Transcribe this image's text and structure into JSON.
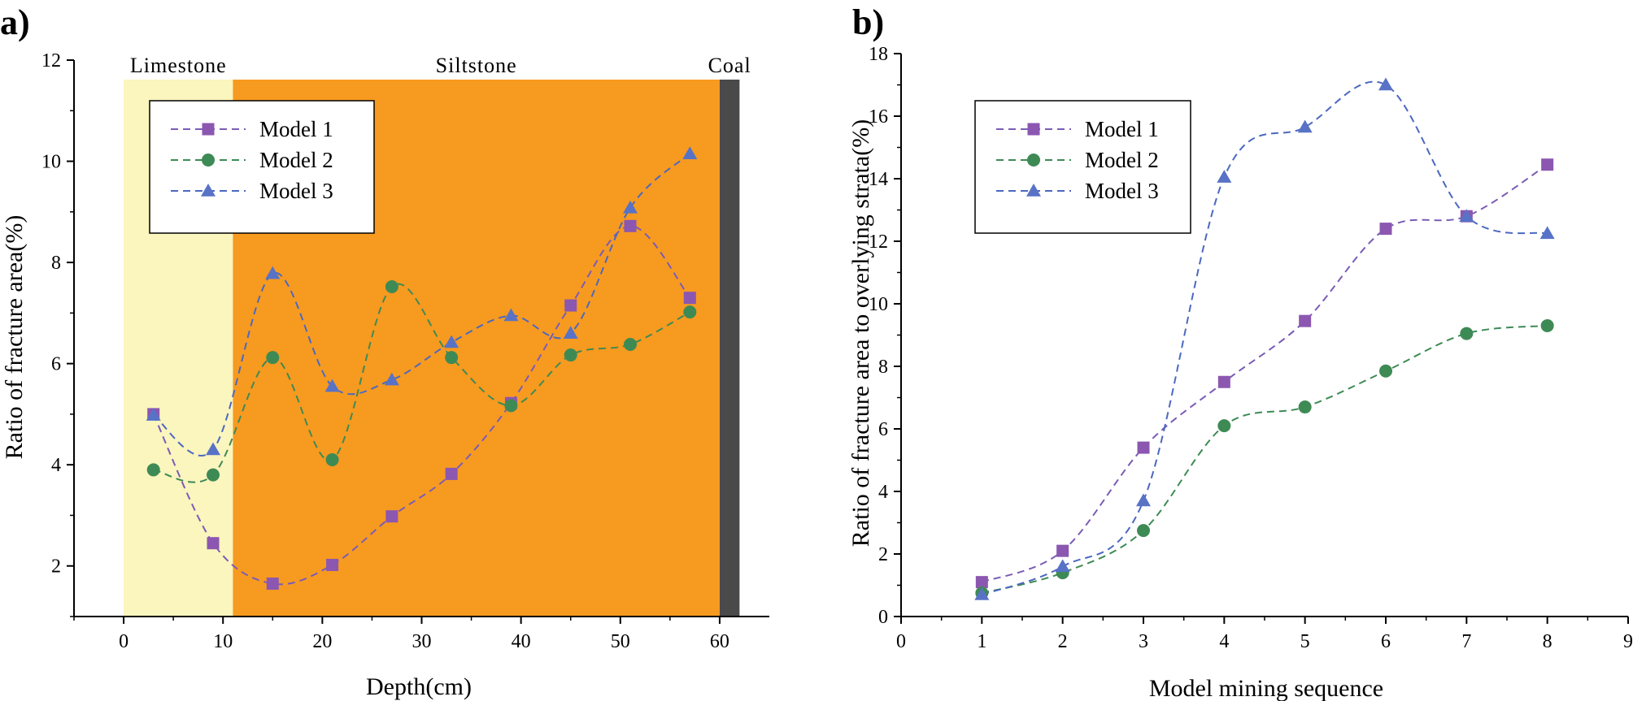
{
  "chart_data": [
    {
      "panel": "a)",
      "type": "line",
      "xlabel": "Depth(cm)",
      "ylabel": "Ratio of fracture area(%)",
      "xlim": [
        -5,
        65
      ],
      "ylim": [
        1,
        12
      ],
      "xticks": [
        0,
        10,
        20,
        30,
        40,
        50,
        60
      ],
      "yticks": [
        2,
        4,
        6,
        8,
        10,
        12
      ],
      "zones": [
        {
          "label": "Limestone",
          "from": 0,
          "to": 11,
          "color": "#FBF5BE"
        },
        {
          "label": "Siltstone",
          "from": 11,
          "to": 60,
          "color": "#F79A20"
        },
        {
          "label": "Coal",
          "from": 60,
          "to": 62,
          "color": "#4A4A4A"
        }
      ],
      "legend_position": "upper-left",
      "series": [
        {
          "name": "Model 1",
          "marker": "square",
          "color": "#8B57B0",
          "lineColor": "#7A5CB5",
          "x": [
            3,
            9,
            15,
            21,
            27,
            33,
            39,
            45,
            51,
            57
          ],
          "y": [
            5.0,
            2.45,
            1.65,
            2.02,
            2.98,
            3.82,
            5.22,
            7.15,
            8.72,
            7.3
          ]
        },
        {
          "name": "Model 2",
          "marker": "circle",
          "color": "#3E8A55",
          "lineColor": "#3E8A55",
          "x": [
            3,
            9,
            15,
            21,
            27,
            33,
            39,
            45,
            51,
            57
          ],
          "y": [
            3.9,
            3.8,
            6.12,
            4.1,
            7.52,
            6.12,
            5.17,
            6.17,
            6.38,
            7.02
          ]
        },
        {
          "name": "Model 3",
          "marker": "triangle",
          "color": "#5872C6",
          "lineColor": "#4B68C0",
          "x": [
            3,
            9,
            15,
            21,
            27,
            33,
            39,
            45,
            51,
            57
          ],
          "y": [
            4.98,
            4.3,
            7.78,
            5.55,
            5.68,
            6.42,
            6.95,
            6.6,
            9.08,
            10.15
          ]
        }
      ]
    },
    {
      "panel": "b)",
      "type": "line",
      "xlabel": "Model mining sequence",
      "ylabel": "Ratio of fracture area to overlying strata(%)",
      "xlim": [
        0,
        9
      ],
      "ylim": [
        0,
        18
      ],
      "xticks": [
        0,
        1,
        2,
        3,
        4,
        5,
        6,
        7,
        8,
        9
      ],
      "yticks": [
        0,
        2,
        4,
        6,
        8,
        10,
        12,
        14,
        16,
        18
      ],
      "legend_position": "upper-left",
      "series": [
        {
          "name": "Model 1",
          "marker": "square",
          "color": "#8B57B0",
          "lineColor": "#7A5CB5",
          "x": [
            1,
            2,
            3,
            4,
            5,
            6,
            7,
            8
          ],
          "y": [
            1.1,
            2.1,
            5.4,
            7.5,
            9.45,
            12.4,
            12.8,
            14.45
          ]
        },
        {
          "name": "Model 2",
          "marker": "circle",
          "color": "#3E8A55",
          "lineColor": "#3E8A55",
          "x": [
            1,
            2,
            3,
            4,
            5,
            6,
            7,
            8
          ],
          "y": [
            0.75,
            1.4,
            2.75,
            6.1,
            6.7,
            7.85,
            9.05,
            9.3
          ]
        },
        {
          "name": "Model 3",
          "marker": "triangle",
          "color": "#5872C6",
          "lineColor": "#4B68C0",
          "x": [
            1,
            2,
            3,
            4,
            5,
            6,
            7,
            8
          ],
          "y": [
            0.7,
            1.6,
            3.7,
            14.05,
            15.65,
            17.0,
            12.8,
            12.25
          ]
        }
      ]
    }
  ]
}
